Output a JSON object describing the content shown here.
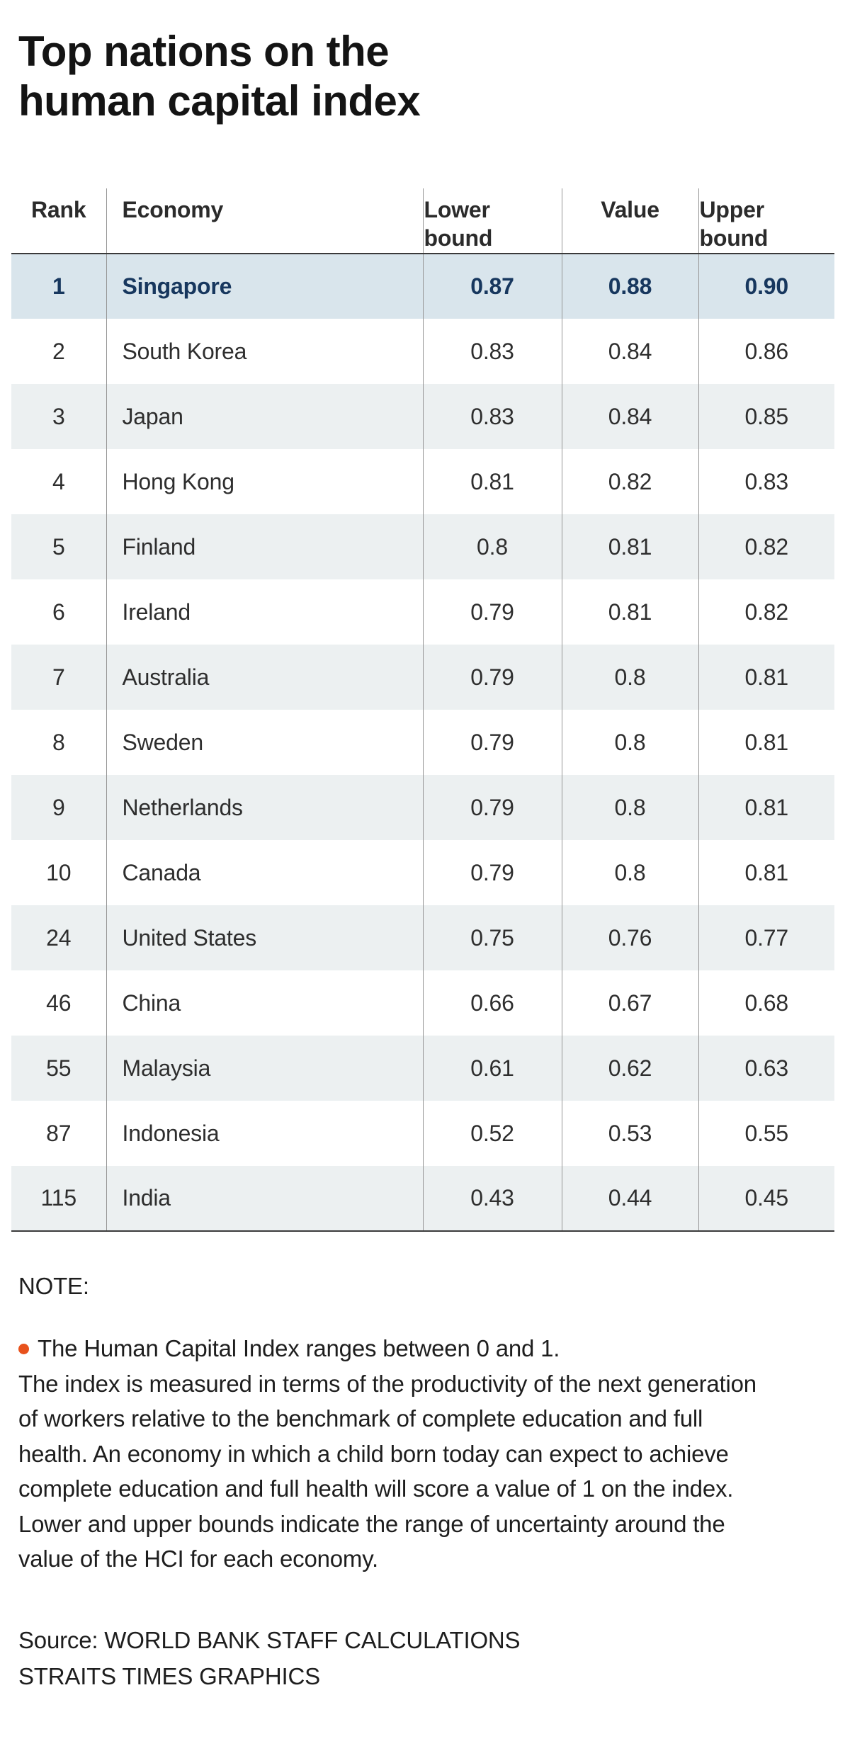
{
  "title": "Top nations on the\nhuman capital index",
  "chart_data": {
    "type": "table",
    "title": "Top nations on the human capital index",
    "columns": [
      "Rank",
      "Economy",
      "Lower bound",
      "Value",
      "Upper bound"
    ],
    "rows": [
      {
        "rank": "1",
        "economy": "Singapore",
        "lower": "0.87",
        "value": "0.88",
        "upper": "0.90",
        "highlight": true
      },
      {
        "rank": "2",
        "economy": "South Korea",
        "lower": "0.83",
        "value": "0.84",
        "upper": "0.86",
        "highlight": false
      },
      {
        "rank": "3",
        "economy": "Japan",
        "lower": "0.83",
        "value": "0.84",
        "upper": "0.85",
        "highlight": false
      },
      {
        "rank": "4",
        "economy": "Hong Kong",
        "lower": "0.81",
        "value": "0.82",
        "upper": "0.83",
        "highlight": false
      },
      {
        "rank": "5",
        "economy": "Finland",
        "lower": "0.8",
        "value": "0.81",
        "upper": "0.82",
        "highlight": false
      },
      {
        "rank": "6",
        "economy": "Ireland",
        "lower": "0.79",
        "value": "0.81",
        "upper": "0.82",
        "highlight": false
      },
      {
        "rank": "7",
        "economy": "Australia",
        "lower": "0.79",
        "value": "0.8",
        "upper": "0.81",
        "highlight": false
      },
      {
        "rank": "8",
        "economy": "Sweden",
        "lower": "0.79",
        "value": "0.8",
        "upper": "0.81",
        "highlight": false
      },
      {
        "rank": "9",
        "economy": "Netherlands",
        "lower": "0.79",
        "value": "0.8",
        "upper": "0.81",
        "highlight": false
      },
      {
        "rank": "10",
        "economy": "Canada",
        "lower": "0.79",
        "value": "0.8",
        "upper": "0.81",
        "highlight": false
      },
      {
        "rank": "24",
        "economy": "United States",
        "lower": "0.75",
        "value": "0.76",
        "upper": "0.77",
        "highlight": false
      },
      {
        "rank": "46",
        "economy": "China",
        "lower": "0.66",
        "value": "0.67",
        "upper": "0.68",
        "highlight": false
      },
      {
        "rank": "55",
        "economy": "Malaysia",
        "lower": "0.61",
        "value": "0.62",
        "upper": "0.63",
        "highlight": false
      },
      {
        "rank": "87",
        "economy": "Indonesia",
        "lower": "0.52",
        "value": "0.53",
        "upper": "0.55",
        "highlight": false
      },
      {
        "rank": "115",
        "economy": "India",
        "lower": "0.43",
        "value": "0.44",
        "upper": "0.45",
        "highlight": false
      }
    ],
    "legend_position": "none",
    "grid": "row-stripes"
  },
  "note": {
    "label": "NOTE:",
    "text": "The Human Capital Index ranges between 0 and 1.\nThe index is measured in terms of the productivity of the next generation of workers relative to the benchmark of complete education and full health. An economy in which a child born today can expect to achieve complete education and full health will score a value of 1 on the index. Lower and upper bounds indicate the range of uncertainty around the value of the HCI for each economy."
  },
  "source": {
    "line1": "Source: WORLD BANK STAFF CALCULATIONS",
    "line2": "STRAITS TIMES GRAPHICS"
  },
  "colors": {
    "accent_bullet": "#e8521c",
    "highlight_row_bg": "#d9e5ec",
    "highlight_row_text": "#17375e",
    "stripe_row_bg": "#ecf0f1",
    "rule_dark": "#3a3a3a",
    "rule_light": "#969696",
    "title_text": "#141414"
  }
}
